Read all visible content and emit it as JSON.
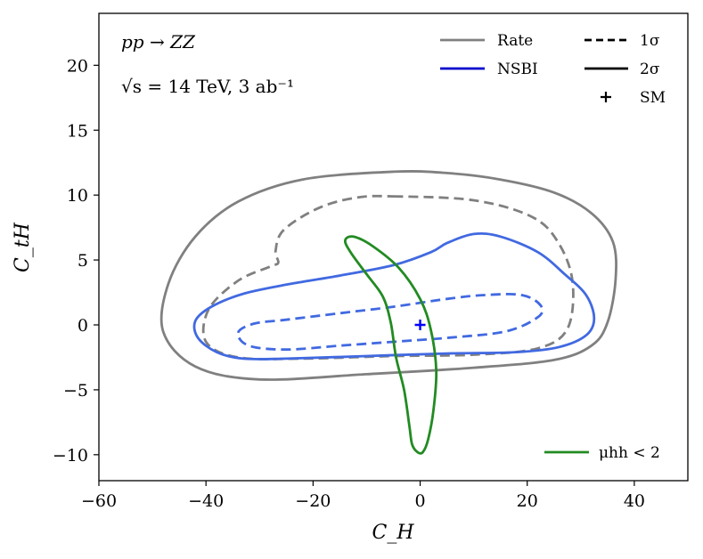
{
  "chart_data": {
    "type": "line",
    "xlabel": "C_H",
    "ylabel": "C_tH",
    "xlim": [
      -60,
      50
    ],
    "ylim": [
      -12,
      24
    ],
    "xticks": [
      -60,
      -40,
      -20,
      0,
      20,
      40
    ],
    "yticks": [
      -10,
      -5,
      0,
      5,
      10,
      15,
      20
    ],
    "xtick_labels": [
      "−60",
      "−40",
      "−20",
      "0",
      "20",
      "40"
    ],
    "ytick_labels": [
      "−10",
      "−5",
      "0",
      "5",
      "10",
      "15",
      "20"
    ],
    "annotations": {
      "process": "pp → ZZ",
      "energy": "√s = 14 TeV,  3 ab⁻¹"
    },
    "legend": {
      "placement": "top-right",
      "entries": [
        {
          "label": "Rate",
          "color": "#808080",
          "style": "solid"
        },
        {
          "label": "NSBI",
          "color": "#0000cc",
          "style": "solid"
        },
        {
          "label": "1σ",
          "color": "#000000",
          "style": "dashed"
        },
        {
          "label": "2σ",
          "color": "#000000",
          "style": "solid"
        },
        {
          "label": "SM",
          "color": "#000000",
          "style": "marker-plus"
        }
      ],
      "extra": {
        "label": "μhh < 2",
        "color": "#228b22",
        "style": "solid",
        "placement": "bottom-right"
      }
    },
    "series": [
      {
        "name": "Rate 2σ",
        "color": "#808080",
        "dashed": false,
        "closed": true,
        "points": [
          [
            -5,
            11.8
          ],
          [
            5,
            11.7
          ],
          [
            15,
            11.2
          ],
          [
            25,
            10.2
          ],
          [
            32,
            8.6
          ],
          [
            36,
            6.4
          ],
          [
            36.5,
            3.5
          ],
          [
            35,
            0.2
          ],
          [
            32,
            -1.6
          ],
          [
            25,
            -2.7
          ],
          [
            10,
            -3.3
          ],
          [
            -10,
            -3.8
          ],
          [
            -30,
            -4.2
          ],
          [
            -42,
            -3.2
          ],
          [
            -48,
            -0.5
          ],
          [
            -47,
            3.2
          ],
          [
            -42,
            6.8
          ],
          [
            -34,
            9.5
          ],
          [
            -22,
            11.2
          ]
        ]
      },
      {
        "name": "Rate 1σ",
        "color": "#808080",
        "dashed": true,
        "closed": true,
        "points": [
          [
            -5,
            9.9
          ],
          [
            10,
            9.6
          ],
          [
            21,
            8.3
          ],
          [
            26,
            6.2
          ],
          [
            28.5,
            3.2
          ],
          [
            27.5,
            -0.3
          ],
          [
            22,
            -1.8
          ],
          [
            10,
            -2.3
          ],
          [
            -5,
            -2.4
          ],
          [
            -22,
            -2.6
          ],
          [
            -34,
            -2.5
          ],
          [
            -40,
            -1.3
          ],
          [
            -39.5,
            1.2
          ],
          [
            -34,
            3.4
          ],
          [
            -28,
            4.5
          ],
          [
            -26.5,
            4.8
          ],
          [
            -27,
            5.7
          ],
          [
            -25.5,
            7.3
          ],
          [
            -19,
            9.0
          ],
          [
            -12,
            9.8
          ]
        ]
      },
      {
        "name": "NSBI 2σ",
        "color": "#4169e1",
        "dashed": false,
        "closed": true,
        "points": [
          [
            -42,
            0.3
          ],
          [
            -39,
            1.4
          ],
          [
            -33,
            2.4
          ],
          [
            -25,
            3.1
          ],
          [
            -15,
            3.8
          ],
          [
            -5,
            4.6
          ],
          [
            2,
            5.6
          ],
          [
            5,
            6.3
          ],
          [
            10,
            7.0
          ],
          [
            15,
            6.8
          ],
          [
            22,
            5.6
          ],
          [
            27,
            3.9
          ],
          [
            31,
            2.3
          ],
          [
            32.5,
            0.5
          ],
          [
            31,
            -0.8
          ],
          [
            26,
            -1.7
          ],
          [
            18,
            -2.1
          ],
          [
            5,
            -2.2
          ],
          [
            -10,
            -2.4
          ],
          [
            -25,
            -2.6
          ],
          [
            -33,
            -2.6
          ],
          [
            -38,
            -2.1
          ],
          [
            -41.5,
            -1.0
          ]
        ]
      },
      {
        "name": "NSBI 1σ",
        "color": "#4169e1",
        "dashed": true,
        "closed": true,
        "points": [
          [
            -34,
            -0.6
          ],
          [
            -31,
            0.1
          ],
          [
            -25,
            0.4
          ],
          [
            -15,
            0.9
          ],
          [
            -5,
            1.4
          ],
          [
            5,
            2.0
          ],
          [
            12,
            2.3
          ],
          [
            19,
            2.3
          ],
          [
            22.5,
            1.5
          ],
          [
            22,
            0.6
          ],
          [
            16,
            -0.5
          ],
          [
            5,
            -1.0
          ],
          [
            -5,
            -1.3
          ],
          [
            -15,
            -1.6
          ],
          [
            -25,
            -1.9
          ],
          [
            -32,
            -1.6
          ]
        ]
      },
      {
        "name": "μhh < 2",
        "color": "#228b22",
        "dashed": false,
        "closed": true,
        "points": [
          [
            -14,
            6.5
          ],
          [
            -12.5,
            6.8
          ],
          [
            -9,
            6.1
          ],
          [
            -4,
            4.4
          ],
          [
            0,
            2.0
          ],
          [
            2,
            -0.4
          ],
          [
            3,
            -3.5
          ],
          [
            2.5,
            -6.5
          ],
          [
            1.5,
            -8.8
          ],
          [
            0.5,
            -9.8
          ],
          [
            -0.5,
            -9.8
          ],
          [
            -1.5,
            -9.2
          ],
          [
            -2,
            -7.8
          ],
          [
            -3,
            -5.0
          ],
          [
            -4.5,
            -2.5
          ],
          [
            -5.5,
            0.2
          ],
          [
            -7,
            2.2
          ],
          [
            -10,
            3.9
          ],
          [
            -13,
            5.6
          ]
        ]
      }
    ],
    "markers": [
      {
        "name": "SM",
        "x": 0,
        "y": 0,
        "symbol": "+",
        "color": "#0000ff"
      }
    ]
  }
}
